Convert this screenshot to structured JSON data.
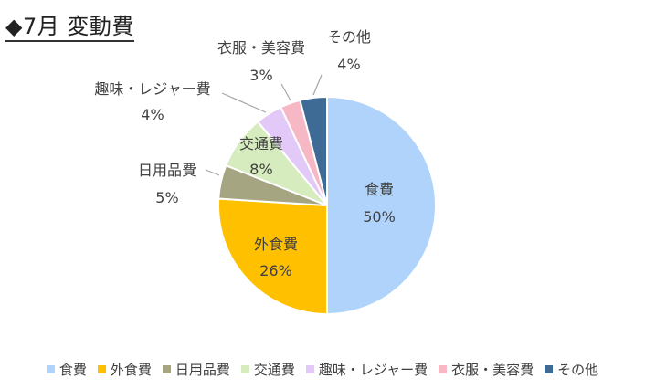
{
  "title": "◆7月 変動費",
  "chart_data": {
    "type": "pie",
    "title": "◆7月 変動費",
    "legend_position": "bottom",
    "slices": [
      {
        "label": "食費",
        "value": 50,
        "percent_label": "50%",
        "color": "#afd3fb"
      },
      {
        "label": "外食費",
        "value": 26,
        "percent_label": "26%",
        "color": "#ffc000"
      },
      {
        "label": "日用品費",
        "value": 5,
        "percent_label": "5%",
        "color": "#a5a582"
      },
      {
        "label": "交通費",
        "value": 8,
        "percent_label": "8%",
        "color": "#d6ecbf"
      },
      {
        "label": "趣味・レジャー費",
        "value": 4,
        "percent_label": "4%",
        "color": "#e3c9f7"
      },
      {
        "label": "衣服・美容費",
        "value": 3,
        "percent_label": "3%",
        "color": "#f7b8c5"
      },
      {
        "label": "その他",
        "value": 4,
        "percent_label": "4%",
        "color": "#3e6a96"
      }
    ]
  }
}
